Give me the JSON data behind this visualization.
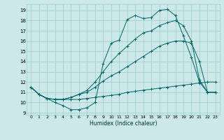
{
  "xlabel": "Humidex (Indice chaleur)",
  "bg_color": "#cce8e8",
  "grid_color": "#99cccc",
  "line_color": "#006666",
  "xlim": [
    -0.5,
    23.5
  ],
  "ylim": [
    8.8,
    19.6
  ],
  "yticks": [
    9,
    10,
    11,
    12,
    13,
    14,
    15,
    16,
    17,
    18,
    19
  ],
  "xticks": [
    0,
    1,
    2,
    3,
    4,
    5,
    6,
    7,
    8,
    9,
    10,
    11,
    12,
    13,
    14,
    15,
    16,
    17,
    18,
    19,
    20,
    21,
    22,
    23
  ],
  "series": [
    [
      11.5,
      10.8,
      10.4,
      10.0,
      9.7,
      9.3,
      9.3,
      9.5,
      10.0,
      13.8,
      15.8,
      16.1,
      18.1,
      18.5,
      18.2,
      18.3,
      19.0,
      19.1,
      18.5,
      16.5,
      14.4,
      12.0,
      11.0,
      11.0
    ],
    [
      11.5,
      10.8,
      10.4,
      10.3,
      10.3,
      10.3,
      10.3,
      10.4,
      10.5,
      10.6,
      10.7,
      10.8,
      11.0,
      11.1,
      11.2,
      11.3,
      11.4,
      11.5,
      11.6,
      11.7,
      11.8,
      11.9,
      12.0,
      12.0
    ],
    [
      11.5,
      10.8,
      10.4,
      10.3,
      10.3,
      10.5,
      10.8,
      11.0,
      11.5,
      12.1,
      12.6,
      13.0,
      13.5,
      14.0,
      14.5,
      15.0,
      15.5,
      15.8,
      16.0,
      16.0,
      15.8,
      14.0,
      11.0,
      11.0
    ],
    [
      11.5,
      10.8,
      10.4,
      10.3,
      10.3,
      10.5,
      10.8,
      11.2,
      12.0,
      13.0,
      14.0,
      14.8,
      15.5,
      16.2,
      16.8,
      17.0,
      17.5,
      17.8,
      18.0,
      17.5,
      16.0,
      12.2,
      11.0,
      11.0
    ]
  ]
}
